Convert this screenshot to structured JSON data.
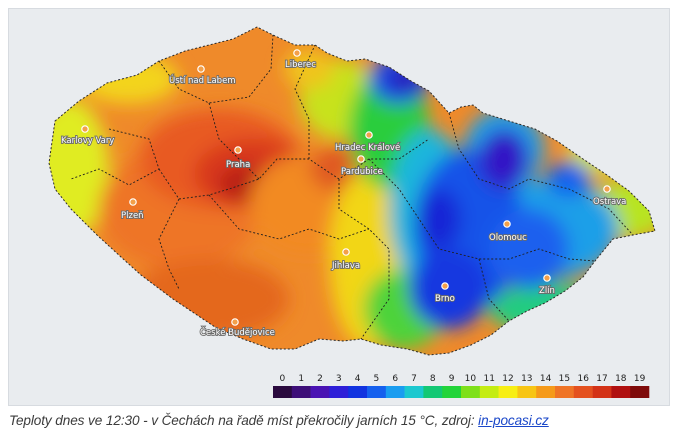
{
  "map": {
    "cities": [
      {
        "id": "liberec",
        "name": "Liberec"
      },
      {
        "id": "usti",
        "name": "Ústí nad Labem"
      },
      {
        "id": "karlovy-vary",
        "name": "Karlovy Vary"
      },
      {
        "id": "hradec",
        "name": "Hradec Králové"
      },
      {
        "id": "praha",
        "name": "Praha"
      },
      {
        "id": "pardubice",
        "name": "Pardubice"
      },
      {
        "id": "plzen",
        "name": "Plzeň"
      },
      {
        "id": "ostrava",
        "name": "Ostrava"
      },
      {
        "id": "olomouc",
        "name": "Olomouc"
      },
      {
        "id": "jihlava",
        "name": "Jihlava"
      },
      {
        "id": "brno",
        "name": "Brno"
      },
      {
        "id": "zlin",
        "name": "Zlín"
      },
      {
        "id": "ceske-budejovice",
        "name": "České Budějovice"
      }
    ],
    "legend": {
      "values": [
        "0",
        "1",
        "2",
        "3",
        "4",
        "5",
        "6",
        "7",
        "8",
        "9",
        "10",
        "11",
        "12",
        "13",
        "14",
        "15",
        "16",
        "17",
        "18",
        "19"
      ],
      "colors": [
        "#2a0a3e",
        "#3d0e78",
        "#4a13b3",
        "#2e1fd8",
        "#1133e0",
        "#1560ee",
        "#1a9df0",
        "#1bc8cf",
        "#13c874",
        "#22d43a",
        "#7ee01a",
        "#c4ec12",
        "#f7ee14",
        "#f7c514",
        "#f59a1a",
        "#ef7426",
        "#e4511f",
        "#d33217",
        "#b01010",
        "#7e0a0a"
      ]
    }
  },
  "caption": {
    "text": "Teploty dnes ve 12:30 - v Čechách na řadě míst překročily jarních 15 °C, zdroj: ",
    "link": "in-pocasi.cz"
  }
}
